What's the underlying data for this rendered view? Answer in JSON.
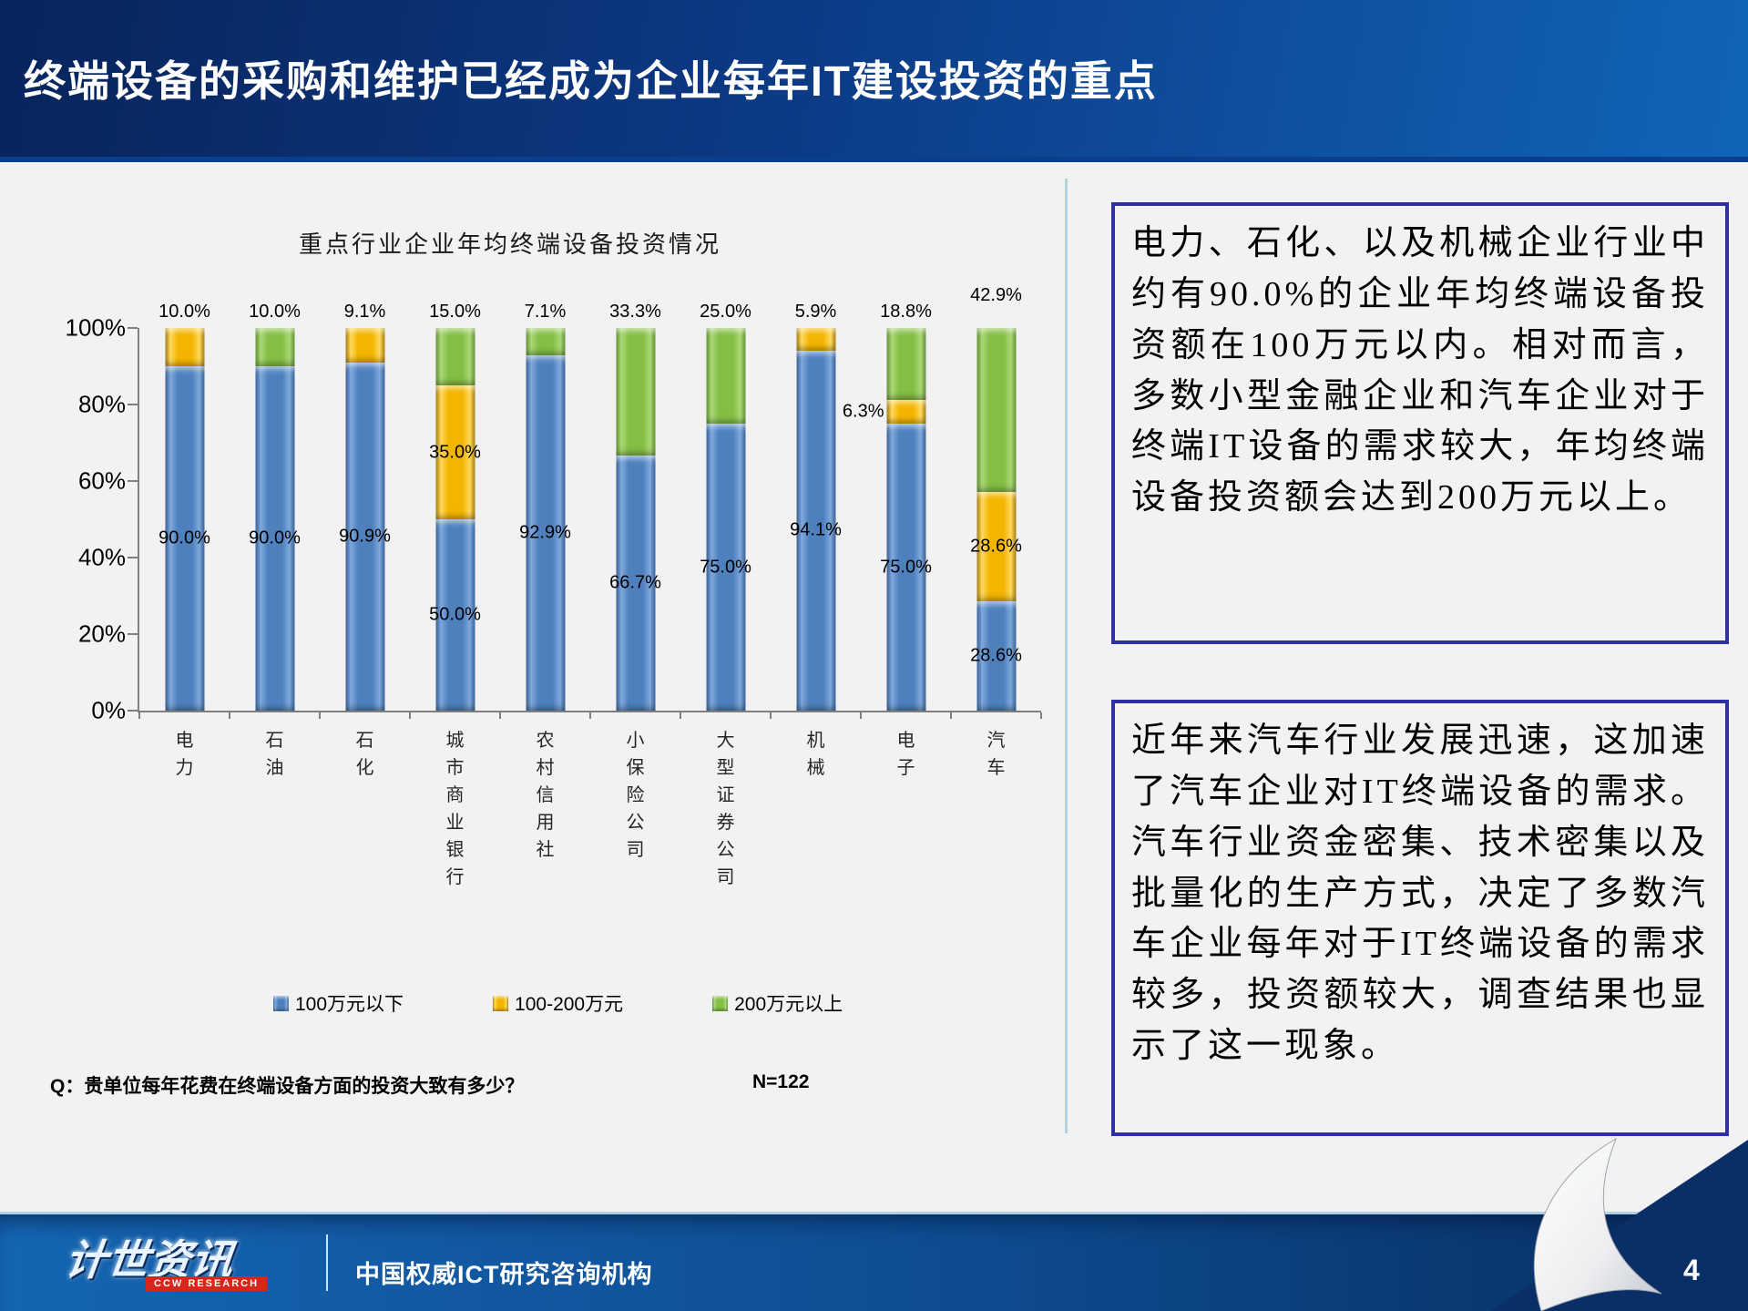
{
  "header": {
    "title": "终端设备的采购和维护已经成为企业每年IT建设投资的重点"
  },
  "chart_data": {
    "type": "bar",
    "stacked": true,
    "title": "重点行业企业年均终端设备投资情况",
    "categories": [
      "电力",
      "石油",
      "石化",
      "城市商业银行",
      "农村信用社",
      "小保险公司",
      "大型证券公司",
      "机械",
      "电子",
      "汽车"
    ],
    "series": [
      {
        "name": "100万元以下",
        "color": "#4E80BE",
        "values": [
          90.0,
          90.0,
          90.9,
          50.0,
          92.9,
          66.7,
          75.0,
          94.1,
          75.0,
          28.6
        ]
      },
      {
        "name": "100-200万元",
        "color": "#F3B500",
        "values": [
          10.0,
          0,
          9.1,
          35.0,
          0,
          0,
          0,
          5.9,
          6.3,
          28.6
        ]
      },
      {
        "name": "200万元以上",
        "color": "#84BE45",
        "values": [
          0,
          10.0,
          0,
          15.0,
          7.1,
          33.3,
          25.0,
          0,
          18.8,
          42.9
        ]
      }
    ],
    "y_ticks": [
      "0%",
      "20%",
      "40%",
      "60%",
      "80%",
      "100%"
    ],
    "ylim": [
      0,
      100
    ],
    "value_suffix": "%",
    "legend_position": "bottom",
    "grid": false
  },
  "question": {
    "label": "Q：贵单位每年花费在终端设备方面的投资大致有多少？",
    "n": "N=122"
  },
  "insight_boxes": [
    {
      "text": "电力、石化、以及机械企业行业中约有90.0%的企业年均终端设备投资额在100万元以内。相对而言，多数小型金融企业和汽车企业对于终端IT设备的需求较大，年均终端设备投资额会达到200万元以上。"
    },
    {
      "text": "近年来汽车行业发展迅速，这加速了汽车企业对IT终端设备的需求。汽车行业资金密集、技术密集以及批量化的生产方式，决定了多数汽车企业每年对于IT终端设备的需求较多，投资额较大，调查结果也显示了这一现象。"
    }
  ],
  "footer": {
    "logo_main": "计世资讯",
    "logo_sub": "CCW RESEARCH",
    "tagline": "中国权威ICT研究咨询机构",
    "page_number": "4"
  },
  "colors": {
    "header_gradient_start": "#08245C",
    "header_gradient_end": "#1164B8",
    "footer_navy": "#0A2F66",
    "insight_box_border": "#2E2FA3",
    "bar_blue": "#4E80BE",
    "bar_gold": "#F3B500",
    "bar_green": "#84BE45",
    "logo_red": "#D7261B"
  }
}
